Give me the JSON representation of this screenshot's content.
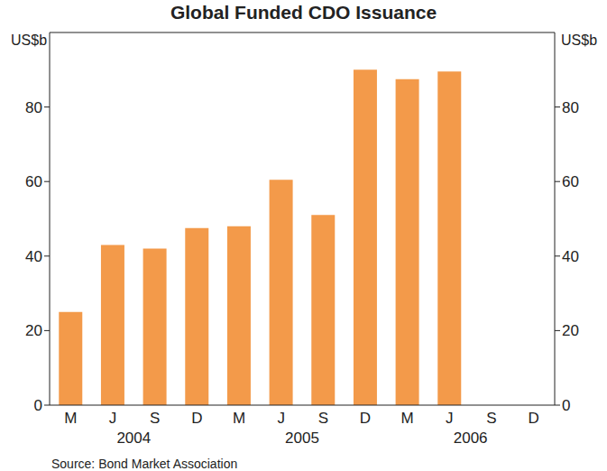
{
  "chart_data": {
    "type": "bar",
    "title": "Global Funded CDO Issuance",
    "y_label": "US$b",
    "source": "Source: Bond Market Association",
    "categories": [
      "M",
      "J",
      "S",
      "D",
      "M",
      "J",
      "S",
      "D",
      "M",
      "J",
      "S",
      "D"
    ],
    "x_groups": [
      {
        "label": "2004",
        "start": 0,
        "end": 3
      },
      {
        "label": "2005",
        "start": 4,
        "end": 7
      },
      {
        "label": "2006",
        "start": 8,
        "end": 11
      }
    ],
    "values": [
      25,
      43,
      42,
      47.5,
      48,
      60.5,
      51,
      90,
      87.5,
      89.5,
      null,
      null
    ],
    "color": "#f39a4a",
    "ylim": [
      0,
      100
    ],
    "yticks": [
      0,
      20,
      40,
      60,
      80
    ],
    "grid": false
  }
}
